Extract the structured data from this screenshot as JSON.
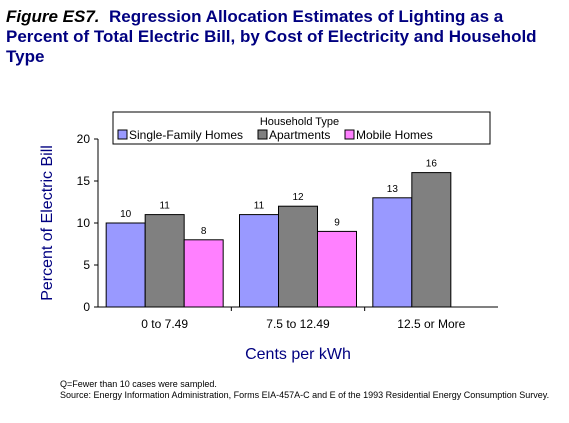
{
  "header": {
    "figure_label": "Figure ES7.",
    "title": "Regression Allocation Estimates of Lighting as a Percent of Total Electric Bill, by Cost of Electricity and Household Type"
  },
  "chart_data": {
    "type": "bar",
    "categories": [
      "0 to 7.49",
      "7.5 to 12.49",
      "12.5 or More"
    ],
    "series": [
      {
        "name": "Single-Family Homes",
        "values": [
          10,
          11,
          13
        ],
        "color": "#9999FF"
      },
      {
        "name": "Apartments",
        "values": [
          11,
          12,
          16
        ],
        "color": "#808080"
      },
      {
        "name": "Mobile Homes",
        "values": [
          8,
          9,
          null
        ],
        "color": "#FF80FF"
      }
    ],
    "legend_title": "Household Type",
    "legend_position": "top",
    "xlabel": "Cents per kWh",
    "ylabel": "Percent of Electric Bill",
    "ylim": [
      0,
      20
    ],
    "yticks": [
      0,
      5,
      10,
      15,
      20
    ],
    "grid": false,
    "axis_color": "#000080"
  },
  "footnote": {
    "line1": "Q=Fewer than 10 cases were sampled.",
    "line2": "Source:  Energy Information Administration, Forms EIA-457A-C and E of the 1993 Residential Energy Consumption Survey."
  }
}
